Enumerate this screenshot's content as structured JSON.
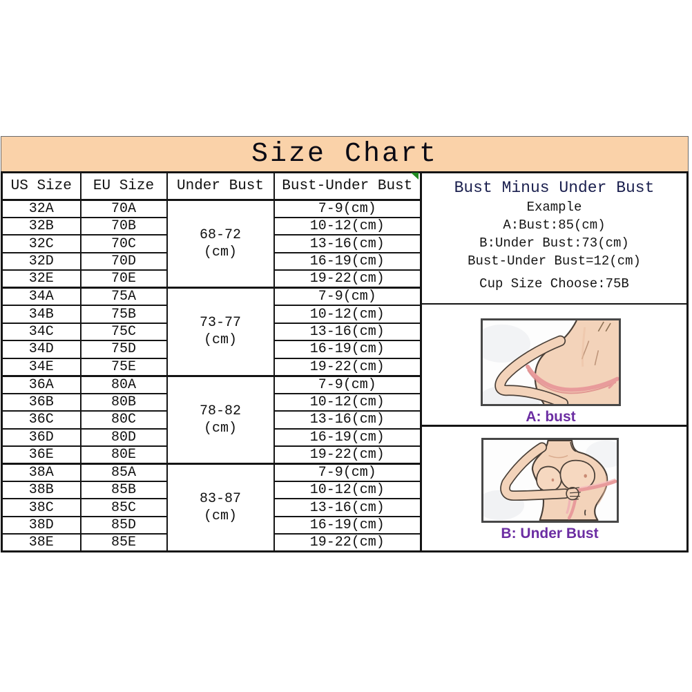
{
  "page": {
    "banner_title": "Size Chart"
  },
  "colors": {
    "banner_bg": "#fad2a9",
    "border": "#141414",
    "label_purple": "#6b2da2",
    "tape_pink": "#e89b9b",
    "skin": "#f3d3ba",
    "marker_green": "#1f8a1f"
  },
  "table": {
    "headers": [
      "US Size",
      "EU Size",
      "Under Bust",
      "Bust-Under Bust"
    ],
    "groups": [
      {
        "under_bust_range": "68-72",
        "under_bust_unit": "(cm)",
        "rows": [
          {
            "us": "32A",
            "eu": "70A",
            "diff": "7-9(cm)"
          },
          {
            "us": "32B",
            "eu": "70B",
            "diff": "10-12(cm)"
          },
          {
            "us": "32C",
            "eu": "70C",
            "diff": "13-16(cm)"
          },
          {
            "us": "32D",
            "eu": "70D",
            "diff": "16-19(cm)"
          },
          {
            "us": "32E",
            "eu": "70E",
            "diff": "19-22(cm)"
          }
        ]
      },
      {
        "under_bust_range": "73-77",
        "under_bust_unit": "(cm)",
        "rows": [
          {
            "us": "34A",
            "eu": "75A",
            "diff": "7-9(cm)"
          },
          {
            "us": "34B",
            "eu": "75B",
            "diff": "10-12(cm)"
          },
          {
            "us": "34C",
            "eu": "75C",
            "diff": "13-16(cm)"
          },
          {
            "us": "34D",
            "eu": "75D",
            "diff": "16-19(cm)"
          },
          {
            "us": "34E",
            "eu": "75E",
            "diff": "19-22(cm)"
          }
        ]
      },
      {
        "under_bust_range": "78-82",
        "under_bust_unit": "(cm)",
        "rows": [
          {
            "us": "36A",
            "eu": "80A",
            "diff": "7-9(cm)"
          },
          {
            "us": "36B",
            "eu": "80B",
            "diff": "10-12(cm)"
          },
          {
            "us": "36C",
            "eu": "80C",
            "diff": "13-16(cm)"
          },
          {
            "us": "36D",
            "eu": "80D",
            "diff": "16-19(cm)"
          },
          {
            "us": "36E",
            "eu": "80E",
            "diff": "19-22(cm)"
          }
        ]
      },
      {
        "under_bust_range": "83-87",
        "under_bust_unit": "(cm)",
        "rows": [
          {
            "us": "38A",
            "eu": "85A",
            "diff": "7-9(cm)"
          },
          {
            "us": "38B",
            "eu": "85B",
            "diff": "10-12(cm)"
          },
          {
            "us": "38C",
            "eu": "85C",
            "diff": "13-16(cm)"
          },
          {
            "us": "38D",
            "eu": "85D",
            "diff": "16-19(cm)"
          },
          {
            "us": "38E",
            "eu": "85E",
            "diff": "19-22(cm)"
          }
        ]
      }
    ]
  },
  "panel": {
    "title": "Bust Minus Under Bust",
    "example_heading": "Example",
    "example_lines": [
      "A:Bust:85(cm)",
      "B:Under Bust:73(cm)",
      "Bust-Under Bust=12(cm)"
    ],
    "cup_line": "Cup Size Choose:75B",
    "figures": [
      {
        "label": "A: bust"
      },
      {
        "label": "B: Under Bust"
      }
    ]
  }
}
